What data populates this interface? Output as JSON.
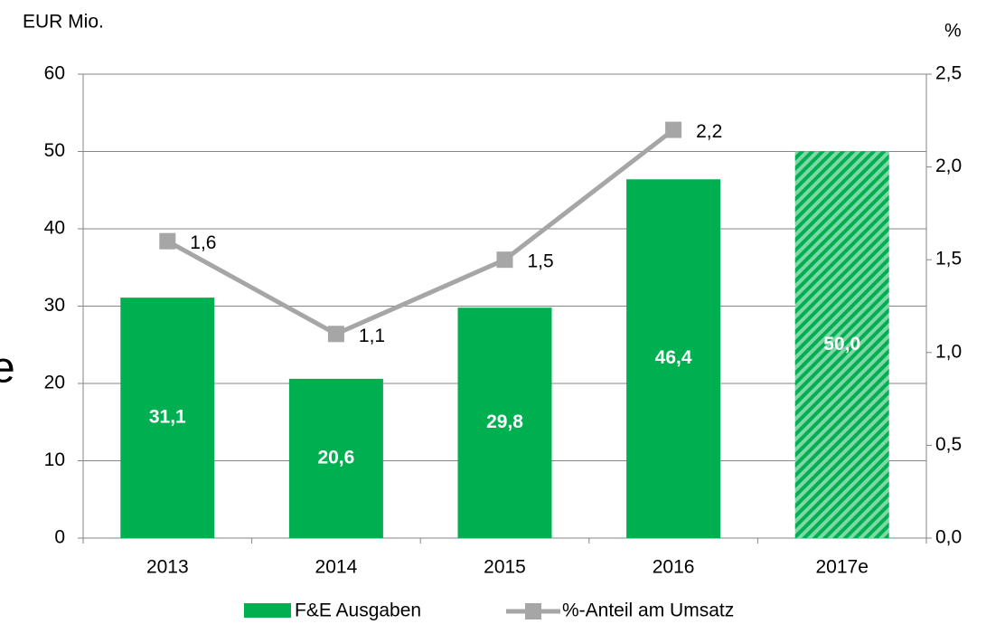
{
  "chart_data": {
    "type": "bar",
    "y_unit": "EUR Mio.",
    "y2_unit": "%",
    "annotation": "e",
    "categories": [
      "2013",
      "2014",
      "2015",
      "2016",
      "2017e"
    ],
    "series": [
      {
        "name": "F&E Ausgaben",
        "type": "bar",
        "color": "#00b050",
        "hatched": [
          false,
          false,
          false,
          false,
          true
        ],
        "values": [
          31.1,
          20.6,
          29.8,
          46.4,
          50.0
        ],
        "value_labels": [
          "31,1",
          "20,6",
          "29,8",
          "46,4",
          "50,0"
        ]
      },
      {
        "name": "%-Anteil am Umsatz",
        "type": "line",
        "axis": "y2",
        "color": "#a6a6a6",
        "values": [
          1.6,
          1.1,
          1.5,
          2.2,
          null
        ],
        "value_labels": [
          "1,6",
          "1,1",
          "1,5",
          "2,2",
          null
        ]
      }
    ],
    "ylim": [
      0,
      60
    ],
    "yticks": [
      0,
      10,
      20,
      30,
      40,
      50,
      60
    ],
    "y2lim": [
      0,
      2.5
    ],
    "y2ticks": [
      {
        "value": 0,
        "label": "0,0"
      },
      {
        "value": 0.5,
        "label": "0,5"
      },
      {
        "value": 1,
        "label": "1,0"
      },
      {
        "value": 1.5,
        "label": "1,5"
      },
      {
        "value": 2,
        "label": "2,0"
      },
      {
        "value": 2.5,
        "label": "2,5"
      }
    ],
    "grid": true,
    "legend": "bottom"
  }
}
